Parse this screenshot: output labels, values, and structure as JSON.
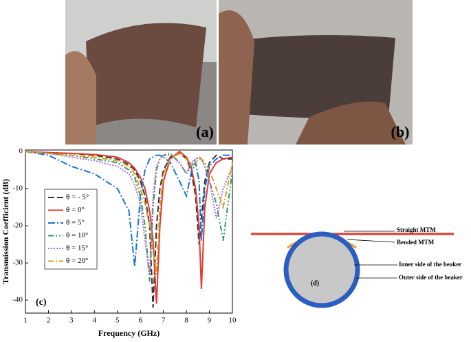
{
  "photos": [
    {
      "label": "(a)"
    },
    {
      "label": "(b)"
    }
  ],
  "chart_data": {
    "type": "line",
    "label": "(c)",
    "x_label": "Frequency (GHz)",
    "y_label": "Transmission Coefficient (dB)",
    "x": [
      1,
      2,
      3,
      4,
      5,
      5.5,
      5.75,
      6,
      6.2,
      6.4,
      6.55,
      6.7,
      6.85,
      7,
      7.3,
      7.7,
      8,
      8.2,
      8.4,
      8.55,
      8.65,
      8.8,
      9,
      9.3,
      9.6,
      10
    ],
    "xlim": [
      1,
      10
    ],
    "xticks": [
      1,
      2,
      3,
      4,
      5,
      6,
      7,
      8,
      9,
      10
    ],
    "ylim": [
      -43.5,
      0.4
    ],
    "yticks": [
      0,
      -10,
      -20,
      -30,
      -40
    ],
    "series": [
      {
        "name": "θ = - 5°",
        "color": "#333333",
        "dash": "9,4",
        "values": [
          0,
          -0.3,
          -0.5,
          -1,
          -2,
          -3.5,
          -5,
          -8,
          -12,
          -20,
          -42,
          -20,
          -10,
          -5,
          -1.5,
          -0.3,
          -2,
          -5,
          -12,
          -25,
          -18,
          -8,
          -3,
          -1,
          -2,
          -2
        ]
      },
      {
        "name": "θ = 0°",
        "color": "#e8352e",
        "dash": "",
        "values": [
          0,
          -0.3,
          -0.5,
          -0.8,
          -1.5,
          -3,
          -4.5,
          -7,
          -10,
          -16,
          -24,
          -41,
          -20,
          -8,
          -2,
          0,
          -1.5,
          -4,
          -10,
          -20,
          -37,
          -15,
          -6,
          -3,
          -2,
          -1.5
        ]
      },
      {
        "name": "θ = 5°",
        "color": "#1a6fdf",
        "dash": "10,3,2,3",
        "values": [
          0,
          -1,
          -4,
          -6,
          -10,
          -16,
          -31,
          -12,
          -5,
          -2,
          -1.5,
          -1,
          -1,
          -1.5,
          -3,
          -8,
          -12,
          -6,
          -3,
          -8,
          -24,
          -10,
          -4,
          -2,
          -1,
          -1
        ]
      },
      {
        "name": "θ = 10°",
        "color": "#2a9d5c",
        "dash": "8,3,2,3,2,3",
        "values": [
          0,
          -0.5,
          -1,
          -2,
          -3,
          -5,
          -7,
          -12,
          -20,
          -35,
          -15,
          -5,
          -2,
          -1,
          -0.5,
          -3,
          -6,
          -4,
          -2,
          -1.5,
          -2,
          -4,
          -8,
          -14,
          -24,
          -5
        ]
      },
      {
        "name": "θ = 15°",
        "color": "#b266d6",
        "dash": "2,2",
        "values": [
          0,
          -0.5,
          -1.5,
          -2.5,
          -4,
          -6,
          -9,
          -14,
          -24,
          -33,
          -12,
          -4,
          -2,
          -1,
          -1,
          -3,
          -6,
          -3,
          -2,
          -1.5,
          -2,
          -4,
          -8,
          -18,
          -10,
          -4
        ]
      },
      {
        "name": "θ = 20°",
        "color": "#d4a017",
        "dash": "8,3,2,3",
        "values": [
          0,
          -0.5,
          -1,
          -1.5,
          -2.5,
          -4,
          -6,
          -10,
          -14,
          -20,
          -27,
          -33,
          -15,
          -6,
          -2,
          -0.5,
          -2,
          -4,
          -3,
          -2,
          -2,
          -3,
          -5,
          -10,
          -15,
          -3
        ]
      }
    ]
  },
  "diagram": {
    "label": "(d)",
    "straight": "Straight MTM",
    "bended": "Bended MTM",
    "inner": "Inner side of the beaker",
    "outer": "Outer side of the beaker"
  }
}
